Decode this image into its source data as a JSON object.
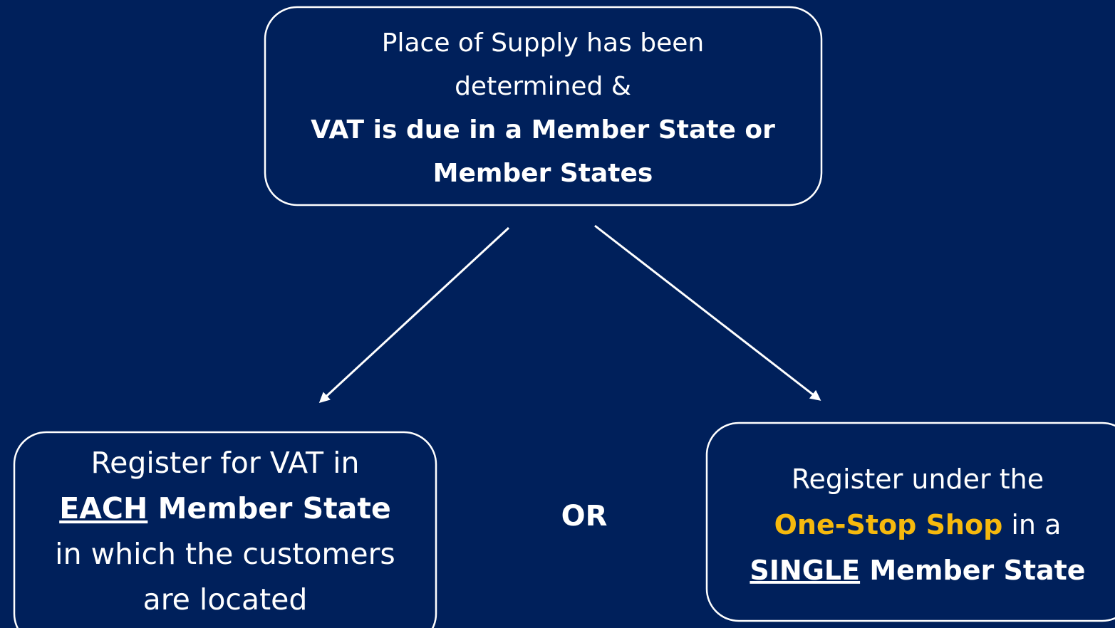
{
  "nodes": [
    {
      "lines": [
        [
          {
            "text": "Place of Supply has been"
          }
        ],
        [
          {
            "text": "determined &"
          }
        ],
        [
          {
            "text": "VAT is due in a Member State or",
            "bold": true
          }
        ],
        [
          {
            "text": "Member States",
            "bold": true
          }
        ]
      ]
    },
    {
      "lines": [
        [
          {
            "text": "Register for VAT in"
          }
        ],
        [
          {
            "text": "EACH",
            "bold": true,
            "underline": true
          },
          {
            "text": " Member State",
            "bold": true
          }
        ],
        [
          {
            "text": "in which the customers"
          }
        ],
        [
          {
            "text": "are located"
          }
        ]
      ]
    },
    {
      "lines": [
        [
          {
            "text": "Register under the"
          }
        ],
        [
          {
            "text": "One-Stop Shop",
            "bold": true,
            "color": "#f6b90d"
          },
          {
            "text": " in a"
          }
        ],
        [
          {
            "text": "SINGLE",
            "bold": true,
            "underline": true
          },
          {
            "text": " Member State",
            "bold": true
          }
        ]
      ]
    }
  ],
  "connector": "OR"
}
